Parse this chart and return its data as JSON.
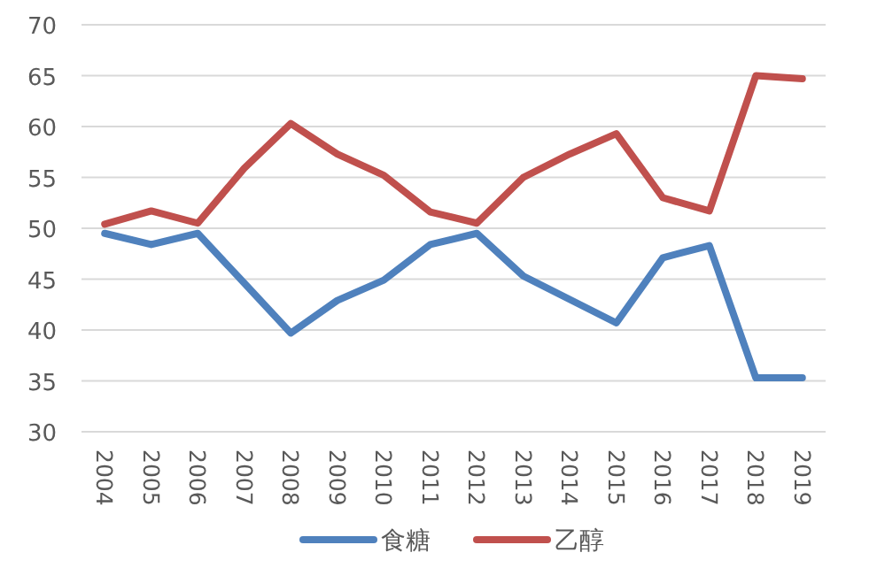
{
  "chart_data": {
    "type": "line",
    "categories": [
      "2004",
      "2005",
      "2006",
      "2007",
      "2008",
      "2009",
      "2010",
      "2011",
      "2012",
      "2013",
      "2014",
      "2015",
      "2016",
      "2017",
      "2018",
      "2019"
    ],
    "series": [
      {
        "name": "食糖",
        "color": "#4f81bd",
        "values": [
          49.5,
          48.4,
          49.5,
          44.6,
          39.7,
          42.9,
          44.9,
          48.4,
          49.5,
          45.3,
          43.0,
          40.7,
          47.1,
          48.3,
          35.3,
          35.3
        ]
      },
      {
        "name": "乙醇",
        "color": "#c0504d",
        "values": [
          50.4,
          51.7,
          50.5,
          55.9,
          60.3,
          57.3,
          55.2,
          51.6,
          50.5,
          55.0,
          57.3,
          59.3,
          53.0,
          51.7,
          65.0,
          64.7
        ]
      }
    ],
    "ylim": [
      30,
      70
    ],
    "yticks": [
      30,
      35,
      40,
      45,
      50,
      55,
      60,
      65,
      70
    ],
    "grid": "y",
    "legend": "bottom",
    "marker": "none",
    "line_style": "solid"
  }
}
